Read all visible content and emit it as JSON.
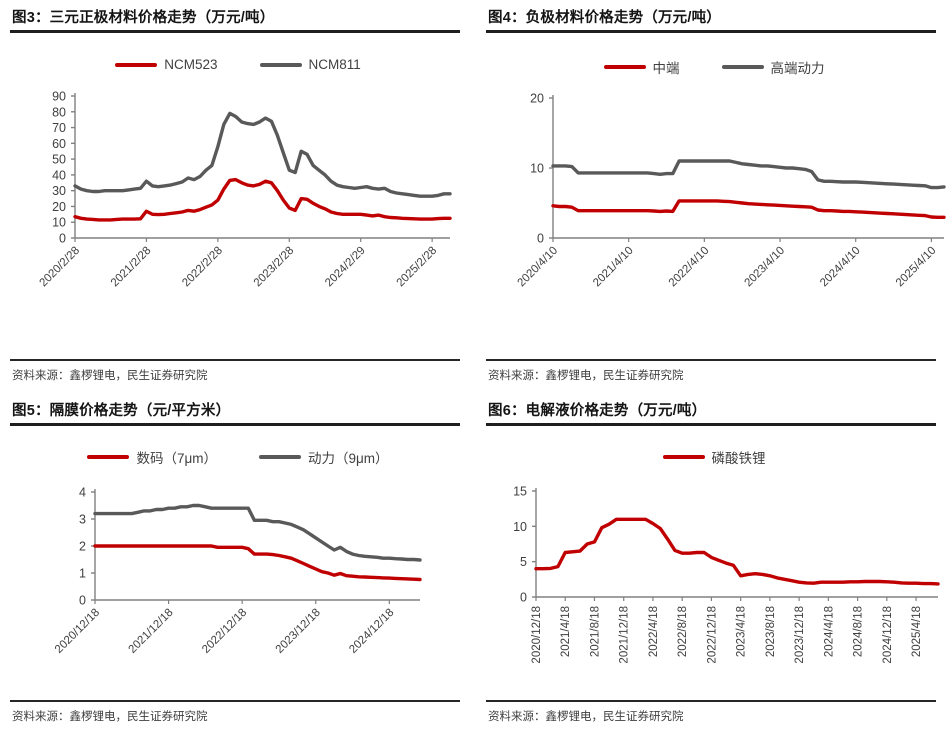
{
  "colors": {
    "red": "#C00000",
    "gray": "#595959",
    "axis": "#808080",
    "tick_text": "#404040"
  },
  "chart_data": [
    {
      "id": "fig3",
      "type": "line",
      "title": "图3：三元正极材料价格走势（万元/吨）",
      "source": "资料来源：鑫椤锂电，民生证券研究院",
      "ylim": [
        0,
        90
      ],
      "yticks": [
        0,
        10,
        20,
        30,
        40,
        50,
        60,
        70,
        80,
        90
      ],
      "x_tick_labels": [
        "2020/2/28",
        "2021/2/28",
        "2022/2/28",
        "2023/2/28",
        "2024/2/29",
        "2025/2/28"
      ],
      "x_tick_indices": [
        0,
        12,
        24,
        36,
        48,
        60
      ],
      "x_label_rotation": 45,
      "legend_position": "top",
      "grid": false,
      "series": [
        {
          "name": "NCM523",
          "color": "#C00000",
          "values": [
            13.5,
            12.5,
            12,
            11.8,
            11.5,
            11.5,
            11.5,
            11.8,
            12,
            12,
            12,
            12.2,
            17,
            15,
            14.8,
            15,
            15.5,
            16,
            16.5,
            17.5,
            17,
            18,
            19.5,
            21,
            24,
            31,
            36.5,
            37,
            35,
            33.5,
            33,
            34,
            36,
            35,
            30,
            24,
            19,
            17.5,
            25,
            24.5,
            22,
            20,
            18.5,
            16.5,
            15.5,
            15,
            15,
            15,
            15,
            14.5,
            14,
            14.5,
            13.5,
            13,
            12.8,
            12.5,
            12.3,
            12.2,
            12,
            12,
            12,
            12.3,
            12.5,
            12.5
          ]
        },
        {
          "name": "NCM811",
          "color": "#595959",
          "values": [
            33,
            31,
            30,
            29.5,
            29.5,
            30,
            30,
            30,
            30,
            30.5,
            31,
            31.5,
            36,
            33,
            32.5,
            33,
            33.5,
            34.5,
            35.5,
            38,
            37,
            39,
            43,
            46,
            58,
            72,
            79,
            77,
            73.5,
            72.5,
            72,
            73.5,
            76,
            74,
            65,
            54,
            43,
            41.5,
            55,
            53,
            46,
            43,
            40,
            36,
            33.5,
            32.5,
            32,
            31.5,
            32,
            32.5,
            31.5,
            31,
            31.5,
            29.5,
            28.5,
            28,
            27.5,
            27,
            26.5,
            26.5,
            26.5,
            27,
            28,
            28
          ]
        }
      ]
    },
    {
      "id": "fig4",
      "type": "line",
      "title": "图4：负极材料价格走势（万元/吨）",
      "source": "资料来源：鑫椤锂电，民生证券研究院",
      "ylim": [
        0,
        20
      ],
      "yticks": [
        0,
        10,
        20
      ],
      "x_tick_labels": [
        "2020/4/10",
        "2021/4/10",
        "2022/4/10",
        "2023/4/10",
        "2024/4/10",
        "2025/4/10"
      ],
      "x_tick_indices": [
        0,
        12,
        24,
        36,
        48,
        60
      ],
      "x_label_rotation": 45,
      "legend_position": "top",
      "grid": false,
      "series": [
        {
          "name": "中端",
          "color": "#C00000",
          "values": [
            4.6,
            4.5,
            4.5,
            4.4,
            3.9,
            3.9,
            3.9,
            3.9,
            3.9,
            3.9,
            3.9,
            3.9,
            3.9,
            3.9,
            3.9,
            3.9,
            3.85,
            3.8,
            3.85,
            3.8,
            5.3,
            5.3,
            5.3,
            5.3,
            5.3,
            5.3,
            5.3,
            5.25,
            5.2,
            5.1,
            5.0,
            4.9,
            4.85,
            4.8,
            4.75,
            4.7,
            4.65,
            4.6,
            4.55,
            4.5,
            4.45,
            4.4,
            4.0,
            3.9,
            3.9,
            3.85,
            3.8,
            3.8,
            3.75,
            3.7,
            3.65,
            3.6,
            3.55,
            3.5,
            3.45,
            3.4,
            3.35,
            3.3,
            3.25,
            3.2,
            3.0,
            2.95,
            2.95
          ]
        },
        {
          "name": "高端动力",
          "color": "#595959",
          "values": [
            10.3,
            10.3,
            10.3,
            10.2,
            9.3,
            9.3,
            9.3,
            9.3,
            9.3,
            9.3,
            9.3,
            9.3,
            9.3,
            9.3,
            9.3,
            9.3,
            9.2,
            9.1,
            9.2,
            9.2,
            11.0,
            11.0,
            11.0,
            11.0,
            11.0,
            11.0,
            11.0,
            11.0,
            11.0,
            10.8,
            10.6,
            10.5,
            10.4,
            10.3,
            10.3,
            10.2,
            10.1,
            10.0,
            10.0,
            9.9,
            9.8,
            9.5,
            8.3,
            8.1,
            8.1,
            8.05,
            8.0,
            8.0,
            8.0,
            7.95,
            7.9,
            7.85,
            7.8,
            7.75,
            7.7,
            7.65,
            7.6,
            7.55,
            7.5,
            7.45,
            7.2,
            7.2,
            7.3
          ]
        }
      ]
    },
    {
      "id": "fig5",
      "type": "line",
      "title": "图5：隔膜价格走势（元/平方米）",
      "source": "资料来源：鑫椤锂电，民生证券研究院",
      "ylim": [
        0,
        4
      ],
      "yticks": [
        0,
        1,
        2,
        3,
        4
      ],
      "x_tick_labels": [
        "2020/12/18",
        "2021/12/18",
        "2022/12/18",
        "2023/12/18",
        "2024/12/18"
      ],
      "x_tick_indices": [
        0,
        12,
        24,
        36,
        48
      ],
      "x_label_rotation": 45,
      "legend_position": "top",
      "grid": false,
      "series": [
        {
          "name": "数码（7μm）",
          "color": "#C00000",
          "values": [
            2.0,
            2.0,
            2.0,
            2.0,
            2.0,
            2.0,
            2.0,
            2.0,
            2.0,
            2.0,
            2.0,
            2.0,
            2.0,
            2.0,
            2.0,
            2.0,
            2.0,
            2.0,
            2.0,
            2.0,
            1.95,
            1.95,
            1.95,
            1.95,
            1.95,
            1.9,
            1.7,
            1.7,
            1.7,
            1.68,
            1.65,
            1.6,
            1.55,
            1.45,
            1.35,
            1.25,
            1.15,
            1.05,
            1.0,
            0.92,
            0.98,
            0.9,
            0.88,
            0.86,
            0.85,
            0.84,
            0.83,
            0.82,
            0.81,
            0.8,
            0.79,
            0.78,
            0.77,
            0.76
          ]
        },
        {
          "name": "动力（9μm）",
          "color": "#595959",
          "values": [
            3.2,
            3.2,
            3.2,
            3.2,
            3.2,
            3.2,
            3.2,
            3.25,
            3.3,
            3.3,
            3.35,
            3.35,
            3.4,
            3.4,
            3.45,
            3.45,
            3.5,
            3.5,
            3.45,
            3.4,
            3.4,
            3.4,
            3.4,
            3.4,
            3.4,
            3.4,
            2.95,
            2.95,
            2.95,
            2.9,
            2.9,
            2.85,
            2.8,
            2.7,
            2.6,
            2.45,
            2.3,
            2.15,
            2.0,
            1.85,
            1.95,
            1.8,
            1.7,
            1.65,
            1.62,
            1.6,
            1.58,
            1.55,
            1.55,
            1.53,
            1.52,
            1.5,
            1.5,
            1.48
          ]
        }
      ]
    },
    {
      "id": "fig6",
      "type": "line",
      "title": "图6：电解液价格走势（万元/吨）",
      "source": "资料来源：鑫椤锂电，民生证券研究院",
      "ylim": [
        0,
        15
      ],
      "yticks": [
        0,
        5,
        10,
        15
      ],
      "x_tick_labels": [
        "2020/12/18",
        "2021/4/18",
        "2021/8/18",
        "2021/12/18",
        "2022/4/18",
        "2022/8/18",
        "2022/12/18",
        "2023/4/18",
        "2023/8/18",
        "2023/12/18",
        "2024/4/18",
        "2024/8/18",
        "2024/12/18",
        "2025/4/18"
      ],
      "x_tick_indices": [
        0,
        4,
        8,
        12,
        16,
        20,
        24,
        28,
        32,
        36,
        40,
        44,
        48,
        52
      ],
      "x_label_rotation": 90,
      "legend_position": "top",
      "grid": false,
      "series": [
        {
          "name": "磷酸铁锂",
          "color": "#C00000",
          "values": [
            4.0,
            4.0,
            4.05,
            4.3,
            6.3,
            6.4,
            6.5,
            7.5,
            7.8,
            9.8,
            10.3,
            11,
            11,
            11,
            11,
            11,
            10.4,
            9.7,
            8.2,
            6.6,
            6.2,
            6.2,
            6.3,
            6.3,
            5.6,
            5.2,
            4.8,
            4.5,
            3.0,
            3.2,
            3.3,
            3.2,
            3.0,
            2.7,
            2.5,
            2.3,
            2.1,
            2.0,
            1.95,
            2.1,
            2.1,
            2.1,
            2.1,
            2.15,
            2.15,
            2.2,
            2.2,
            2.2,
            2.15,
            2.1,
            2.0,
            1.95,
            1.95,
            1.9,
            1.9,
            1.85
          ]
        }
      ]
    }
  ]
}
